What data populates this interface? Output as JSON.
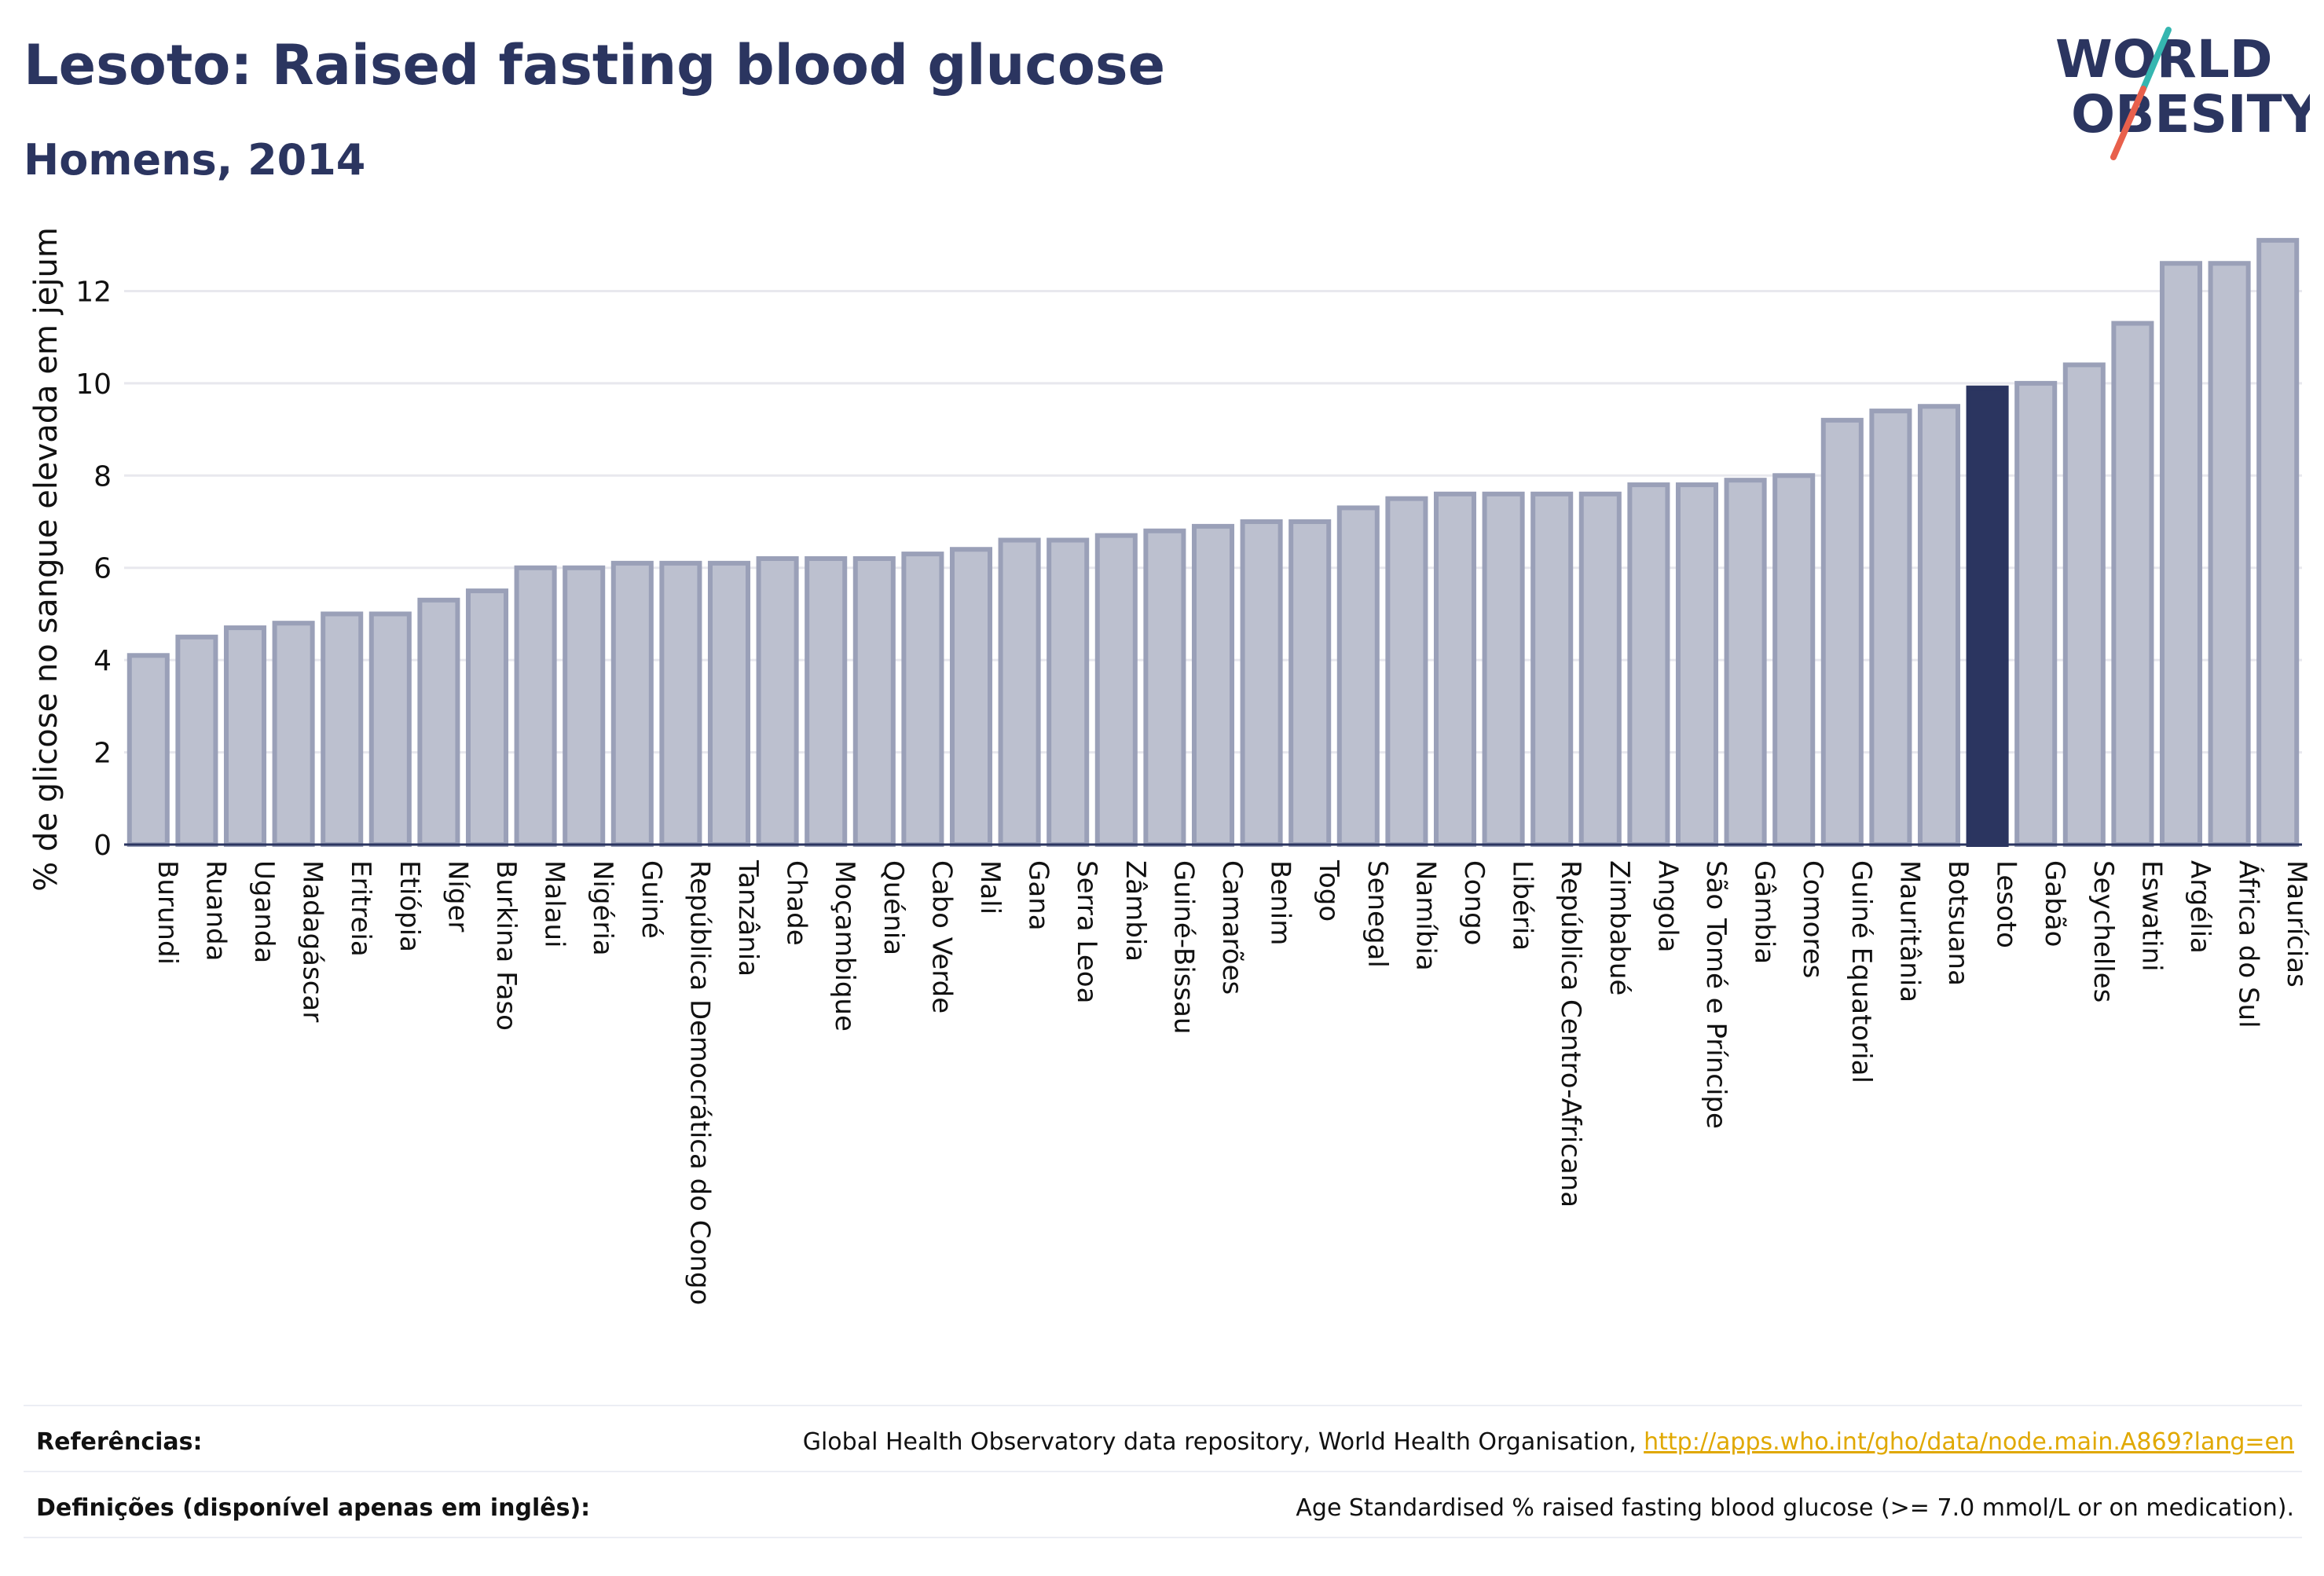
{
  "header": {
    "title": "Lesoto: Raised fasting blood glucose",
    "subtitle": "Homens, 2014"
  },
  "logo": {
    "line1": "WORLD",
    "line2": "OBESITY",
    "text_color": "#2b3560",
    "slash_colors": [
      "#35b6b0",
      "#e8604c"
    ]
  },
  "colors": {
    "bar_fill": "#bcc0cf",
    "bar_stroke": "#9aa0b8",
    "highlight_fill": "#2b3560",
    "grid": "#e8e8ee",
    "axis_text": "#111111"
  },
  "chart_data": {
    "type": "bar",
    "ylabel": "% de glicose no sangue elevada em jejum",
    "xlabel": "",
    "ylim": [
      0,
      13.2
    ],
    "yticks": [
      0,
      2,
      4,
      6,
      8,
      10,
      12
    ],
    "grid": true,
    "highlight": "Lesoto",
    "categories": [
      "Burundi",
      "Ruanda",
      "Uganda",
      "Madagáscar",
      "Eritreia",
      "Etiópia",
      "Níger",
      "Burkina Faso",
      "Malaui",
      "Nigéria",
      "Guiné",
      "República Democrática do Congo",
      "Tanzânia",
      "Chade",
      "Moçambique",
      "Quénia",
      "Cabo Verde",
      "Mali",
      "Gana",
      "Serra Leoa",
      "Zâmbia",
      "Guiné-Bissau",
      "Camarões",
      "Benim",
      "Togo",
      "Senegal",
      "Namíbia",
      "Congo",
      "Libéria",
      "República Centro-Africana",
      "Zimbabué",
      "Angola",
      "São Tomé e Príncipe",
      "Gâmbia",
      "Comores",
      "Guiné Equatorial",
      "Mauritânia",
      "Botsuana",
      "Lesoto",
      "Gabão",
      "Seychelles",
      "Eswatini",
      "Argélia",
      "África do Sul",
      "Maurícias"
    ],
    "values": [
      4.1,
      4.5,
      4.7,
      4.8,
      5.0,
      5.0,
      5.3,
      5.5,
      6.0,
      6.0,
      6.1,
      6.1,
      6.1,
      6.2,
      6.2,
      6.2,
      6.3,
      6.4,
      6.6,
      6.6,
      6.7,
      6.8,
      6.9,
      7.0,
      7.0,
      7.3,
      7.5,
      7.6,
      7.6,
      7.6,
      7.6,
      7.8,
      7.8,
      7.9,
      8.0,
      9.2,
      9.4,
      9.5,
      9.9,
      10.0,
      10.4,
      11.3,
      12.6,
      12.6,
      13.1
    ]
  },
  "footer": {
    "references_label": "Referências:",
    "references_text": "Global Health Observatory data repository, World Health Organisation, ",
    "references_link": "http://apps.who.int/gho/data/node.main.A869?lang=en",
    "definitions_label": "Definições (disponível apenas em inglês):",
    "definitions_text": "Age Standardised % raised fasting blood glucose (>= 7.0 mmol/L or on medication)."
  }
}
